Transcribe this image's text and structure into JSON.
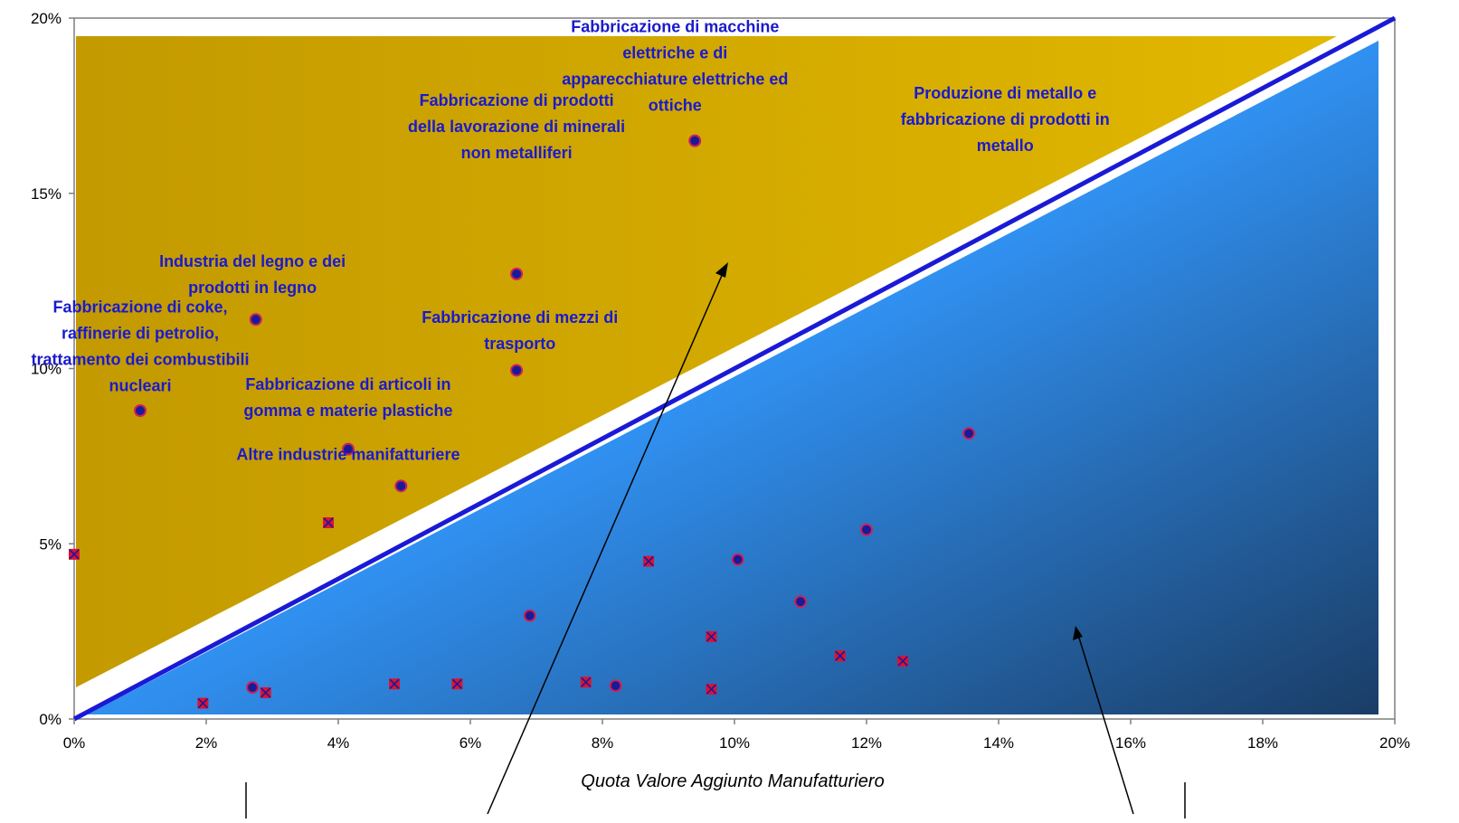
{
  "chart_data": {
    "type": "scatter",
    "title": "",
    "xlabel": "Quota Valore Aggiunto Manufatturiero",
    "ylabel": "",
    "xlim": [
      0,
      20
    ],
    "ylim": [
      0,
      20
    ],
    "x_ticks": [
      "0%",
      "2%",
      "4%",
      "6%",
      "8%",
      "10%",
      "12%",
      "14%",
      "16%",
      "18%",
      "20%"
    ],
    "y_ticks": [
      "0%",
      "5%",
      "10%",
      "15%",
      "20%"
    ],
    "grid": false,
    "legend": "none",
    "diagonal_line": {
      "from": [
        0,
        0
      ],
      "to": [
        20,
        20
      ],
      "color": "#1a1ad6"
    },
    "regions": {
      "upper_color_start": "#c39a00",
      "upper_color_end": "#e2b800",
      "lower_color_start": "#3399ff",
      "lower_color_end": "#1a3d66"
    },
    "series": [
      {
        "marker": "circle",
        "color": "#1a1a99",
        "edge": "#cc2255",
        "points": [
          {
            "x": 1.0,
            "y": 8.8
          },
          {
            "x": 2.75,
            "y": 11.4
          },
          {
            "x": 4.15,
            "y": 7.7
          },
          {
            "x": 4.95,
            "y": 6.65
          },
          {
            "x": 6.7,
            "y": 12.7
          },
          {
            "x": 6.7,
            "y": 9.95
          },
          {
            "x": 9.4,
            "y": 16.5
          },
          {
            "x": 2.7,
            "y": 0.9
          },
          {
            "x": 6.9,
            "y": 2.95
          },
          {
            "x": 8.2,
            "y": 0.95
          },
          {
            "x": 10.05,
            "y": 4.55
          },
          {
            "x": 11.0,
            "y": 3.35
          },
          {
            "x": 12.0,
            "y": 5.4
          },
          {
            "x": 13.55,
            "y": 8.15
          }
        ]
      },
      {
        "marker": "x",
        "color": "#1a1a99",
        "edge": "#dd1133",
        "points": [
          {
            "x": 0.0,
            "y": 4.7
          },
          {
            "x": 1.95,
            "y": 0.45
          },
          {
            "x": 2.9,
            "y": 0.75
          },
          {
            "x": 3.85,
            "y": 5.6
          },
          {
            "x": 4.85,
            "y": 1.0
          },
          {
            "x": 5.8,
            "y": 1.0
          },
          {
            "x": 7.75,
            "y": 1.05
          },
          {
            "x": 8.7,
            "y": 4.5
          },
          {
            "x": 9.65,
            "y": 2.35
          },
          {
            "x": 9.65,
            "y": 0.85
          },
          {
            "x": 11.6,
            "y": 1.8
          },
          {
            "x": 12.55,
            "y": 1.65
          }
        ]
      }
    ],
    "annotations": [
      {
        "lines": [
          "Fabbricazione di macchine",
          "elettriche e di",
          "apparecchiature elettriche ed",
          "ottiche"
        ],
        "x": 9.1,
        "y": 19.6
      },
      {
        "lines": [
          "Fabbricazione di prodotti",
          "della lavorazione di minerali",
          "non metalliferi"
        ],
        "x": 6.7,
        "y": 17.5
      },
      {
        "lines": [
          "Produzione di metallo e",
          "fabbricazione di prodotti in",
          "metallo"
        ],
        "x": 14.1,
        "y": 17.7
      },
      {
        "lines": [
          "Industria del legno e dei",
          "prodotti in legno"
        ],
        "x": 2.7,
        "y": 12.9
      },
      {
        "lines": [
          "Fabbricazione di coke,",
          "raffinerie di petrolio,",
          "trattamento dei combustibili",
          "nucleari"
        ],
        "x": 1.0,
        "y": 11.6
      },
      {
        "lines": [
          "Fabbricazione di mezzi di",
          "trasporto"
        ],
        "x": 6.75,
        "y": 11.3
      },
      {
        "lines": [
          "Fabbricazione di articoli in",
          "gomma e materie plastiche"
        ],
        "x": 4.15,
        "y": 9.4
      },
      {
        "lines": [
          "Altre industrie manifatturiere"
        ],
        "x": 4.15,
        "y": 7.4
      }
    ]
  }
}
